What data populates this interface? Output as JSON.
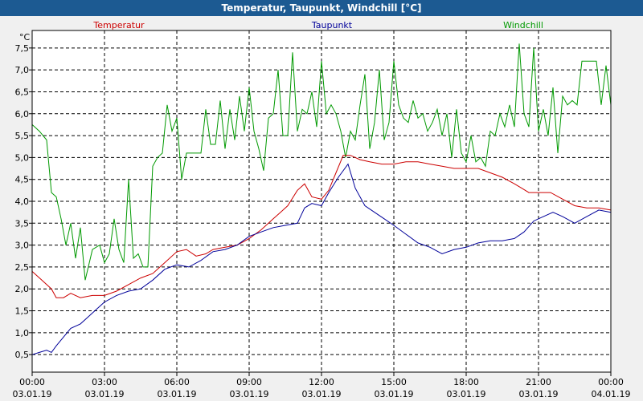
{
  "window": {
    "title": "Temperatur, Taupunkt, Windchill [°C]"
  },
  "chart_data": {
    "type": "line",
    "title": "Temperatur, Taupunkt, Windchill [°C]",
    "ylabel": "°C",
    "xlim": [
      0,
      24
    ],
    "ylim": [
      0.1,
      7.9
    ],
    "grid": true,
    "legend_position": "top",
    "y_ticks": [
      "0,5",
      "1,0",
      "1,5",
      "2,0",
      "2,5",
      "3,0",
      "3,5",
      "4,0",
      "4,5",
      "5,0",
      "5,5",
      "6,0",
      "6,5",
      "7,0",
      "7,5"
    ],
    "y_tick_values": [
      0.5,
      1.0,
      1.5,
      2.0,
      2.5,
      3.0,
      3.5,
      4.0,
      4.5,
      5.0,
      5.5,
      6.0,
      6.5,
      7.0,
      7.5
    ],
    "x_ticks": [
      {
        "time": "00:00",
        "date": "03.01.19",
        "hour": 0
      },
      {
        "time": "03:00",
        "date": "03.01.19",
        "hour": 3
      },
      {
        "time": "06:00",
        "date": "03.01.19",
        "hour": 6
      },
      {
        "time": "09:00",
        "date": "03.01.19",
        "hour": 9
      },
      {
        "time": "12:00",
        "date": "03.01.19",
        "hour": 12
      },
      {
        "time": "15:00",
        "date": "03.01.19",
        "hour": 15
      },
      {
        "time": "18:00",
        "date": "03.01.19",
        "hour": 18
      },
      {
        "time": "21:00",
        "date": "03.01.19",
        "hour": 21
      },
      {
        "time": "00:00",
        "date": "04.01.19",
        "hour": 24
      }
    ],
    "series": [
      {
        "name": "Temperatur",
        "color": "#cc0000",
        "x": [
          0,
          0.4,
          0.8,
          1.0,
          1.3,
          1.6,
          2.0,
          2.5,
          3.0,
          3.5,
          4.0,
          4.5,
          5.0,
          5.5,
          6.0,
          6.4,
          6.8,
          7.2,
          7.5,
          8.0,
          8.5,
          9.0,
          9.5,
          10.0,
          10.3,
          10.6,
          11.0,
          11.3,
          11.6,
          12.0,
          12.3,
          12.6,
          12.9,
          13.2,
          13.6,
          14.0,
          14.5,
          15.0,
          15.5,
          16.0,
          16.5,
          17.0,
          17.5,
          18.0,
          18.5,
          19.0,
          19.5,
          20.0,
          20.3,
          20.6,
          21.0,
          21.5,
          22.0,
          22.5,
          23.0,
          23.5,
          24.0
        ],
        "y": [
          2.4,
          2.2,
          2.0,
          1.8,
          1.8,
          1.9,
          1.8,
          1.85,
          1.85,
          1.95,
          2.1,
          2.25,
          2.35,
          2.6,
          2.85,
          2.9,
          2.75,
          2.8,
          2.9,
          2.95,
          3.0,
          3.15,
          3.35,
          3.6,
          3.75,
          3.9,
          4.25,
          4.4,
          4.1,
          4.05,
          4.25,
          4.65,
          5.05,
          5.05,
          4.95,
          4.9,
          4.85,
          4.85,
          4.9,
          4.9,
          4.85,
          4.8,
          4.75,
          4.75,
          4.75,
          4.65,
          4.55,
          4.4,
          4.3,
          4.2,
          4.2,
          4.2,
          4.05,
          3.9,
          3.85,
          3.85,
          3.8
        ]
      },
      {
        "name": "Taupunkt",
        "color": "#000099",
        "x": [
          0,
          0.3,
          0.6,
          0.8,
          1.0,
          1.3,
          1.6,
          2.0,
          2.3,
          2.6,
          3.0,
          3.5,
          4.0,
          4.5,
          5.0,
          5.5,
          6.0,
          6.5,
          7.0,
          7.5,
          8.0,
          8.5,
          9.0,
          9.5,
          10.0,
          10.5,
          11.0,
          11.3,
          11.6,
          12.0,
          12.3,
          12.7,
          13.1,
          13.4,
          13.8,
          14.2,
          14.6,
          15.0,
          15.5,
          16.0,
          16.5,
          17.0,
          17.5,
          18.0,
          18.5,
          19.0,
          19.5,
          20.0,
          20.4,
          20.8,
          21.2,
          21.6,
          22.0,
          22.5,
          23.0,
          23.5,
          24.0
        ],
        "y": [
          0.5,
          0.55,
          0.6,
          0.55,
          0.7,
          0.9,
          1.1,
          1.2,
          1.35,
          1.5,
          1.7,
          1.85,
          1.95,
          2.0,
          2.2,
          2.45,
          2.55,
          2.5,
          2.65,
          2.85,
          2.9,
          3.0,
          3.2,
          3.3,
          3.4,
          3.45,
          3.5,
          3.85,
          3.95,
          3.9,
          4.2,
          4.55,
          4.85,
          4.3,
          3.9,
          3.75,
          3.6,
          3.45,
          3.25,
          3.05,
          2.95,
          2.8,
          2.9,
          2.95,
          3.05,
          3.1,
          3.1,
          3.15,
          3.3,
          3.55,
          3.65,
          3.75,
          3.65,
          3.5,
          3.65,
          3.8,
          3.75
        ]
      },
      {
        "name": "Windchill",
        "color": "#009900",
        "x": [
          0,
          0.3,
          0.6,
          0.8,
          1.0,
          1.2,
          1.4,
          1.6,
          1.8,
          2.0,
          2.2,
          2.5,
          2.8,
          3.0,
          3.2,
          3.4,
          3.6,
          3.8,
          4.0,
          4.2,
          4.4,
          4.6,
          4.8,
          5.0,
          5.2,
          5.4,
          5.6,
          5.8,
          6.0,
          6.2,
          6.4,
          6.7,
          7.0,
          7.2,
          7.4,
          7.6,
          7.8,
          8.0,
          8.2,
          8.4,
          8.6,
          8.8,
          9.0,
          9.2,
          9.4,
          9.6,
          9.8,
          10.0,
          10.2,
          10.4,
          10.6,
          10.8,
          11.0,
          11.2,
          11.4,
          11.6,
          11.8,
          12.0,
          12.2,
          12.4,
          12.6,
          12.8,
          13.0,
          13.2,
          13.4,
          13.6,
          13.8,
          14.0,
          14.2,
          14.4,
          14.6,
          14.8,
          15.0,
          15.2,
          15.4,
          15.6,
          15.8,
          16.0,
          16.2,
          16.4,
          16.6,
          16.8,
          17.0,
          17.2,
          17.4,
          17.6,
          17.8,
          18.0,
          18.2,
          18.4,
          18.6,
          18.8,
          19.0,
          19.2,
          19.4,
          19.6,
          19.8,
          20.0,
          20.2,
          20.4,
          20.6,
          20.8,
          21.0,
          21.2,
          21.4,
          21.6,
          21.8,
          22.0,
          22.2,
          22.4,
          22.6,
          22.8,
          23.0,
          23.2,
          23.4,
          23.6,
          23.8,
          24.0
        ],
        "y": [
          5.75,
          5.6,
          5.4,
          4.2,
          4.1,
          3.6,
          3.0,
          3.5,
          2.7,
          3.4,
          2.2,
          2.9,
          3.0,
          2.6,
          2.8,
          3.6,
          2.9,
          2.6,
          4.5,
          2.7,
          2.8,
          2.5,
          2.5,
          4.8,
          5.0,
          5.1,
          6.2,
          5.6,
          5.9,
          4.5,
          5.1,
          5.1,
          5.1,
          6.1,
          5.3,
          5.3,
          6.3,
          5.2,
          6.1,
          5.4,
          6.4,
          5.6,
          6.6,
          5.6,
          5.2,
          4.7,
          5.9,
          6.0,
          7.0,
          5.5,
          5.5,
          7.4,
          5.6,
          6.1,
          6.0,
          6.5,
          5.7,
          7.2,
          6.0,
          6.2,
          6.0,
          5.6,
          5.0,
          5.6,
          5.4,
          6.2,
          6.9,
          5.2,
          5.8,
          7.0,
          5.4,
          5.8,
          7.2,
          6.2,
          5.9,
          5.8,
          6.3,
          5.9,
          6.0,
          5.6,
          5.8,
          6.1,
          5.5,
          6.0,
          5.0,
          6.1,
          5.1,
          4.9,
          5.5,
          4.9,
          5.0,
          4.8,
          5.6,
          5.5,
          6.0,
          5.7,
          6.2,
          5.7,
          7.6,
          6.0,
          5.7,
          7.5,
          5.6,
          6.1,
          5.5,
          6.6,
          5.1,
          6.4,
          6.2,
          6.3,
          6.2,
          7.2,
          7.2,
          7.2,
          7.2,
          6.2,
          7.1,
          6.2
        ]
      }
    ]
  }
}
